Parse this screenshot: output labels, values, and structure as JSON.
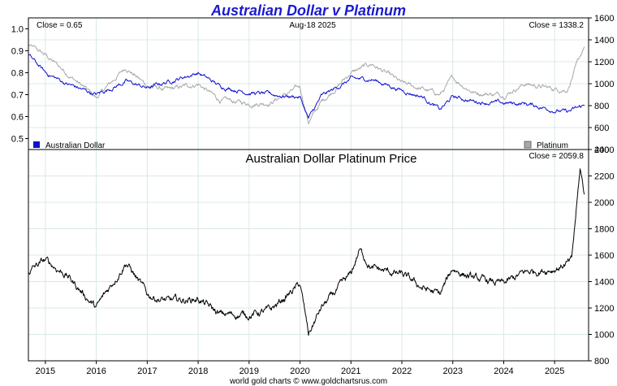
{
  "colors": {
    "title": "#1a1ad0",
    "aud": "#1010d0",
    "platinum": "#a8a8a8",
    "aud_price": "#000000",
    "grid": "#d8e8e8",
    "axis": "#000000"
  },
  "chart_data": [
    {
      "type": "line",
      "title": "Australian Dollar v Platinum",
      "date_label": "Aug-18  2025",
      "close_left_label": "Close = 0.65",
      "close_right_label": "Close = 1338.2",
      "y_left_lim": [
        0.45,
        1.05
      ],
      "y_left_ticks": [
        0.5,
        0.6,
        0.7,
        0.8,
        0.9,
        1.0
      ],
      "y_left_tick_labels": [
        "0.5",
        "0.6",
        "0.7",
        "0.8",
        "0.9",
        "1.0"
      ],
      "y_right_lim": [
        400,
        1600
      ],
      "y_right_ticks": [
        400,
        600,
        800,
        1000,
        1200,
        1400,
        1600
      ],
      "y_right_tick_labels": [
        "400",
        "600",
        "800",
        "1000",
        "1200",
        "1400",
        "1600"
      ],
      "grid": true,
      "legend_placement": "bottom",
      "series": [
        {
          "name": "Australian Dollar",
          "axis": "left",
          "x": [
            "2014-09",
            "2015-01",
            "2015-06",
            "2016-01",
            "2016-08",
            "2017-01",
            "2017-06",
            "2018-01",
            "2018-06",
            "2019-01",
            "2019-06",
            "2020-01",
            "2020-03",
            "2020-06",
            "2021-01",
            "2021-06",
            "2022-01",
            "2022-06",
            "2022-10",
            "2023-01",
            "2023-06",
            "2024-01",
            "2024-06",
            "2025-01",
            "2025-04",
            "2025-08"
          ],
          "values": [
            0.88,
            0.8,
            0.75,
            0.7,
            0.76,
            0.73,
            0.76,
            0.8,
            0.74,
            0.71,
            0.7,
            0.69,
            0.59,
            0.69,
            0.77,
            0.77,
            0.72,
            0.69,
            0.63,
            0.69,
            0.67,
            0.66,
            0.66,
            0.63,
            0.62,
            0.65
          ]
        },
        {
          "name": "Platinum",
          "axis": "right",
          "x": [
            "2014-09",
            "2015-01",
            "2015-06",
            "2016-01",
            "2016-08",
            "2017-01",
            "2017-06",
            "2018-01",
            "2018-06",
            "2019-01",
            "2019-06",
            "2020-01",
            "2020-03",
            "2020-06",
            "2021-01",
            "2021-06",
            "2022-01",
            "2022-06",
            "2022-10",
            "2023-01",
            "2023-06",
            "2024-01",
            "2024-06",
            "2025-01",
            "2025-04",
            "2025-08"
          ],
          "values": [
            1350,
            1260,
            1100,
            870,
            1150,
            980,
            940,
            1000,
            850,
            820,
            830,
            970,
            650,
            830,
            1100,
            1180,
            1000,
            950,
            900,
            1050,
            920,
            900,
            1000,
            950,
            950,
            1338
          ]
        }
      ]
    },
    {
      "type": "line",
      "title": "Australian Dollar Platinum Price",
      "close_label": "Close = 2059.8",
      "x_tick_labels": [
        "2015",
        "2016",
        "2017",
        "2018",
        "2019",
        "2020",
        "2021",
        "2022",
        "2023",
        "2024",
        "2025"
      ],
      "x_range": [
        "2014-09",
        "2025-08"
      ],
      "y_lim": [
        800,
        2400
      ],
      "y_ticks": [
        800,
        1000,
        1200,
        1400,
        1600,
        1800,
        2000,
        2200,
        2400
      ],
      "y_tick_labels": [
        "800",
        "1000",
        "1200",
        "1400",
        "1600",
        "1800",
        "2000",
        "2200",
        "2400"
      ],
      "grid": true,
      "series": [
        {
          "x": [
            "2014-09",
            "2015-01",
            "2015-06",
            "2016-01",
            "2016-08",
            "2017-01",
            "2017-06",
            "2018-01",
            "2018-06",
            "2019-01",
            "2019-06",
            "2020-01",
            "2020-03",
            "2020-06",
            "2021-01",
            "2021-03",
            "2021-06",
            "2022-01",
            "2022-06",
            "2022-10",
            "2023-01",
            "2023-06",
            "2024-01",
            "2024-06",
            "2025-01",
            "2025-05",
            "2025-07",
            "2025-08"
          ],
          "values": [
            1480,
            1560,
            1450,
            1200,
            1550,
            1300,
            1250,
            1270,
            1150,
            1150,
            1180,
            1380,
            1000,
            1200,
            1450,
            1640,
            1500,
            1450,
            1350,
            1300,
            1500,
            1420,
            1380,
            1470,
            1500,
            1550,
            2250,
            2060
          ]
        }
      ]
    }
  ],
  "footer": {
    "credit": "world gold charts © www.goldchartsrus.com"
  }
}
